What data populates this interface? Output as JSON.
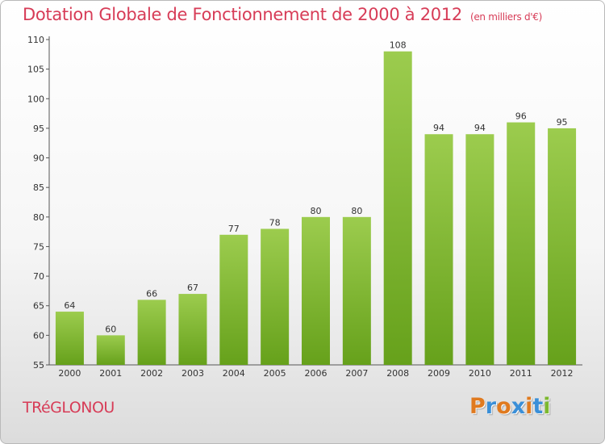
{
  "header": {
    "title": "Dotation Globale de Fonctionnement de 2000 à 2012",
    "unit": "(en milliers d'€)"
  },
  "footer": {
    "commune": "TRéGLONOU",
    "logo": "Proxiti"
  },
  "colors": {
    "title": "#d73c57",
    "bar_top": "#9ccc4e",
    "bar_bottom": "#66a11b",
    "logo_letters": [
      "#e07a1f",
      "#3a8fd8",
      "#e07a1f",
      "#3a8fd8",
      "#e07a1f",
      "#3a8fd8",
      "#7cb82f"
    ]
  },
  "chart_data": {
    "type": "bar",
    "categories": [
      "2000",
      "2001",
      "2002",
      "2003",
      "2004",
      "2005",
      "2006",
      "2007",
      "2008",
      "2009",
      "2010",
      "2011",
      "2012"
    ],
    "values": [
      64,
      60,
      66,
      67,
      77,
      78,
      80,
      80,
      108,
      94,
      94,
      96,
      95
    ],
    "ylim": [
      55,
      110
    ],
    "yticks": [
      55,
      60,
      65,
      70,
      75,
      80,
      85,
      90,
      95,
      100,
      105,
      110
    ],
    "grid": false,
    "legend": "none"
  }
}
